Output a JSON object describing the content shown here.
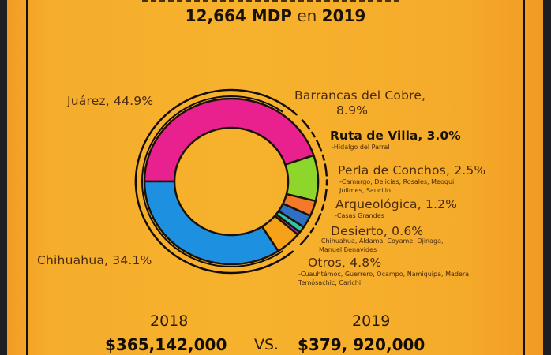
{
  "header": {
    "amount": "12,664 MDP",
    "connector": "en",
    "year": "2019"
  },
  "comparison": {
    "left_year": "2018",
    "left_amount": "$365,142,000",
    "vs": "VS.",
    "right_year": "2019",
    "right_amount": "$379, 920,000"
  },
  "colors": {
    "background": "#f5ad2b",
    "border": "#111111",
    "outer": "#1e1e24",
    "separator_accent": "#e8322a"
  },
  "chart_data": {
    "type": "pie",
    "variant": "donut",
    "unit": "%",
    "categories": [
      "Juárez",
      "Barrancas del Cobre",
      "Ruta de Villa",
      "Perla de Conchos",
      "Arqueológica",
      "Desierto",
      "Otros",
      "Chihuahua"
    ],
    "values": [
      44.9,
      8.9,
      3.0,
      2.5,
      1.2,
      0.6,
      4.8,
      34.1
    ],
    "colors": [
      "#e8218e",
      "#8ed62b",
      "#f47a2a",
      "#2f6fc4",
      "#2ec4a5",
      "#8b3ff0",
      "#f5a11a",
      "#1e90e0"
    ],
    "labels": [
      {
        "text": "Juárez, 44.9%",
        "sub": []
      },
      {
        "text": "Barrancas del Cobre,",
        "text2": "8.9%",
        "sub": []
      },
      {
        "text": "Ruta de Villa, 3.0%",
        "sub": [
          "-Hidalgo del Parral"
        ]
      },
      {
        "text": "Perla de Conchos, 2.5%",
        "sub": [
          "-Camargo, Delicias, Rosales, Meoqui,",
          "Julimes, Saucillo"
        ]
      },
      {
        "text": "Arqueológica, 1.2%",
        "sub": [
          "-Casas Grandes"
        ]
      },
      {
        "text": "Desierto, 0.6%",
        "sub": [
          "-Chihuahua, Aldama, Coyame, Ojinaga,",
          "Manuel Benavides"
        ]
      },
      {
        "text": "Otros, 4.8%",
        "sub": [
          "-Cuauhtémoc, Guerrero, Ocampo, Namiquipa, Madera,",
          "Temósachic, Carichi"
        ]
      },
      {
        "text": "Chihuahua, 34.1%",
        "sub": []
      }
    ],
    "start": "left",
    "direction": "clockwise",
    "legend": "none"
  }
}
